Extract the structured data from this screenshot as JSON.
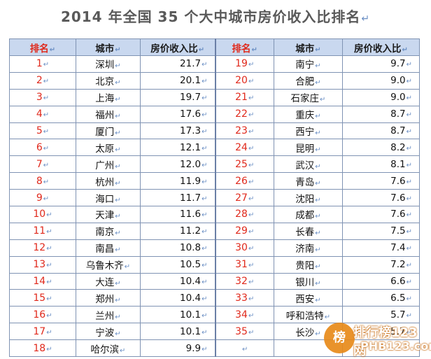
{
  "title": "2014 年全国 35 个大中城市房价收入比排名",
  "para_mark": "↵",
  "headers": {
    "rank": "排名",
    "city": "城市",
    "ratio": "房价收入比"
  },
  "left": [
    {
      "rank": "1",
      "city": "深圳",
      "value": "21.7"
    },
    {
      "rank": "2",
      "city": "北京",
      "value": "20.1"
    },
    {
      "rank": "3",
      "city": "上海",
      "value": "19.7"
    },
    {
      "rank": "4",
      "city": "福州",
      "value": "17.6"
    },
    {
      "rank": "5",
      "city": "厦门",
      "value": "17.3"
    },
    {
      "rank": "6",
      "city": "太原",
      "value": "12.1"
    },
    {
      "rank": "7",
      "city": "广州",
      "value": "12.0"
    },
    {
      "rank": "8",
      "city": "杭州",
      "value": "11.9"
    },
    {
      "rank": "9",
      "city": "海口",
      "value": "11.7"
    },
    {
      "rank": "10",
      "city": "天津",
      "value": "11.6"
    },
    {
      "rank": "11",
      "city": "南京",
      "value": "11.2"
    },
    {
      "rank": "12",
      "city": "南昌",
      "value": "10.8"
    },
    {
      "rank": "13",
      "city": "乌鲁木齐",
      "value": "10.5"
    },
    {
      "rank": "14",
      "city": "大连",
      "value": "10.4"
    },
    {
      "rank": "15",
      "city": "郑州",
      "value": "10.4"
    },
    {
      "rank": "16",
      "city": "兰州",
      "value": "10.1"
    },
    {
      "rank": "17",
      "city": "宁波",
      "value": "10.1"
    },
    {
      "rank": "18",
      "city": "哈尔滨",
      "value": "9.9"
    }
  ],
  "right": [
    {
      "rank": "19",
      "city": "南宁",
      "value": "9.7"
    },
    {
      "rank": "20",
      "city": "合肥",
      "value": "9.0"
    },
    {
      "rank": "21",
      "city": "石家庄",
      "value": "9.0"
    },
    {
      "rank": "22",
      "city": "重庆",
      "value": "8.7"
    },
    {
      "rank": "23",
      "city": "西宁",
      "value": "8.7"
    },
    {
      "rank": "24",
      "city": "昆明",
      "value": "8.2"
    },
    {
      "rank": "25",
      "city": "武汉",
      "value": "8.1"
    },
    {
      "rank": "26",
      "city": "青岛",
      "value": "7.6"
    },
    {
      "rank": "27",
      "city": "沈阳",
      "value": "7.6"
    },
    {
      "rank": "28",
      "city": "成都",
      "value": "7.6"
    },
    {
      "rank": "29",
      "city": "长春",
      "value": "7.5"
    },
    {
      "rank": "30",
      "city": "济南",
      "value": "7.4"
    },
    {
      "rank": "31",
      "city": "贵阳",
      "value": "7.2"
    },
    {
      "rank": "32",
      "city": "银川",
      "value": "6.6"
    },
    {
      "rank": "33",
      "city": "西安",
      "value": "6.5"
    },
    {
      "rank": "34",
      "city": "呼和浩特",
      "value": "5.7"
    },
    {
      "rank": "35",
      "city": "长沙",
      "value": "5.7"
    },
    {
      "rank": "",
      "city": "",
      "value": ""
    }
  ],
  "watermark": {
    "logo_text": "榜",
    "line1": "排行榜123网",
    "line2": "PHB123.com"
  },
  "colors": {
    "header_bg": "#c9d8ef",
    "rank_red": "#e0291c",
    "watermark_orange": "#e88a1a"
  }
}
